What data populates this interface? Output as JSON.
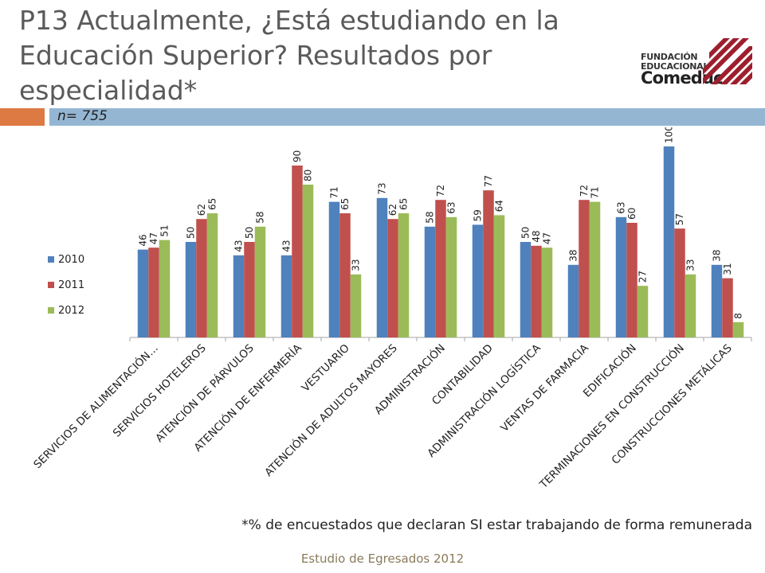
{
  "slide": {
    "title": "P13 Actualmente, ¿Está estudiando en la Educación Superior? Resultados por especialidad*",
    "sample": "n= 755",
    "footnote": "*% de encuestados que declaran SI estar trabajando de forma remunerada",
    "footer": "Estudio de Egresados 2012"
  },
  "logo": {
    "line1": "FUNDACIÓN",
    "line2": "EDUCACIONAL",
    "line3": "Comeduc",
    "color": "#9c1f2e"
  },
  "chart_data": {
    "type": "bar",
    "categories": [
      "SERVICIOS DE ALIMENTACIÓN…",
      "SERVICIOS HOTELEROS",
      "ATENCIÓN DE PÁRVULOS",
      "ATENCIÓN DE ENFERMERÍA",
      "VESTUARIO",
      "ATENCIÓN DE ADULTOS MAYORES",
      "ADMINISTRACIÓN",
      "CONTABILIDAD",
      "ADMINISTRACIÓN LOGÍSTICA",
      "VENTAS DE FARMACIA",
      "EDIFICACIÓN",
      "TERMINACIONES EN CONSTRUCCIÓN",
      "CONSTRUCCIONES METÁLICAS"
    ],
    "series": [
      {
        "name": "2010",
        "color": "#4f81bd",
        "values": [
          46,
          50,
          43,
          43,
          71,
          73,
          58,
          59,
          50,
          38,
          63,
          100,
          38
        ]
      },
      {
        "name": "2011",
        "color": "#c0504d",
        "values": [
          47,
          62,
          50,
          90,
          65,
          62,
          72,
          77,
          48,
          72,
          60,
          57,
          31
        ]
      },
      {
        "name": "2012",
        "color": "#9bbb59",
        "values": [
          51,
          65,
          58,
          80,
          33,
          65,
          63,
          64,
          47,
          71,
          27,
          33,
          8
        ]
      }
    ],
    "ylim": [
      0,
      100
    ],
    "legend_position": "left",
    "grid": false
  }
}
